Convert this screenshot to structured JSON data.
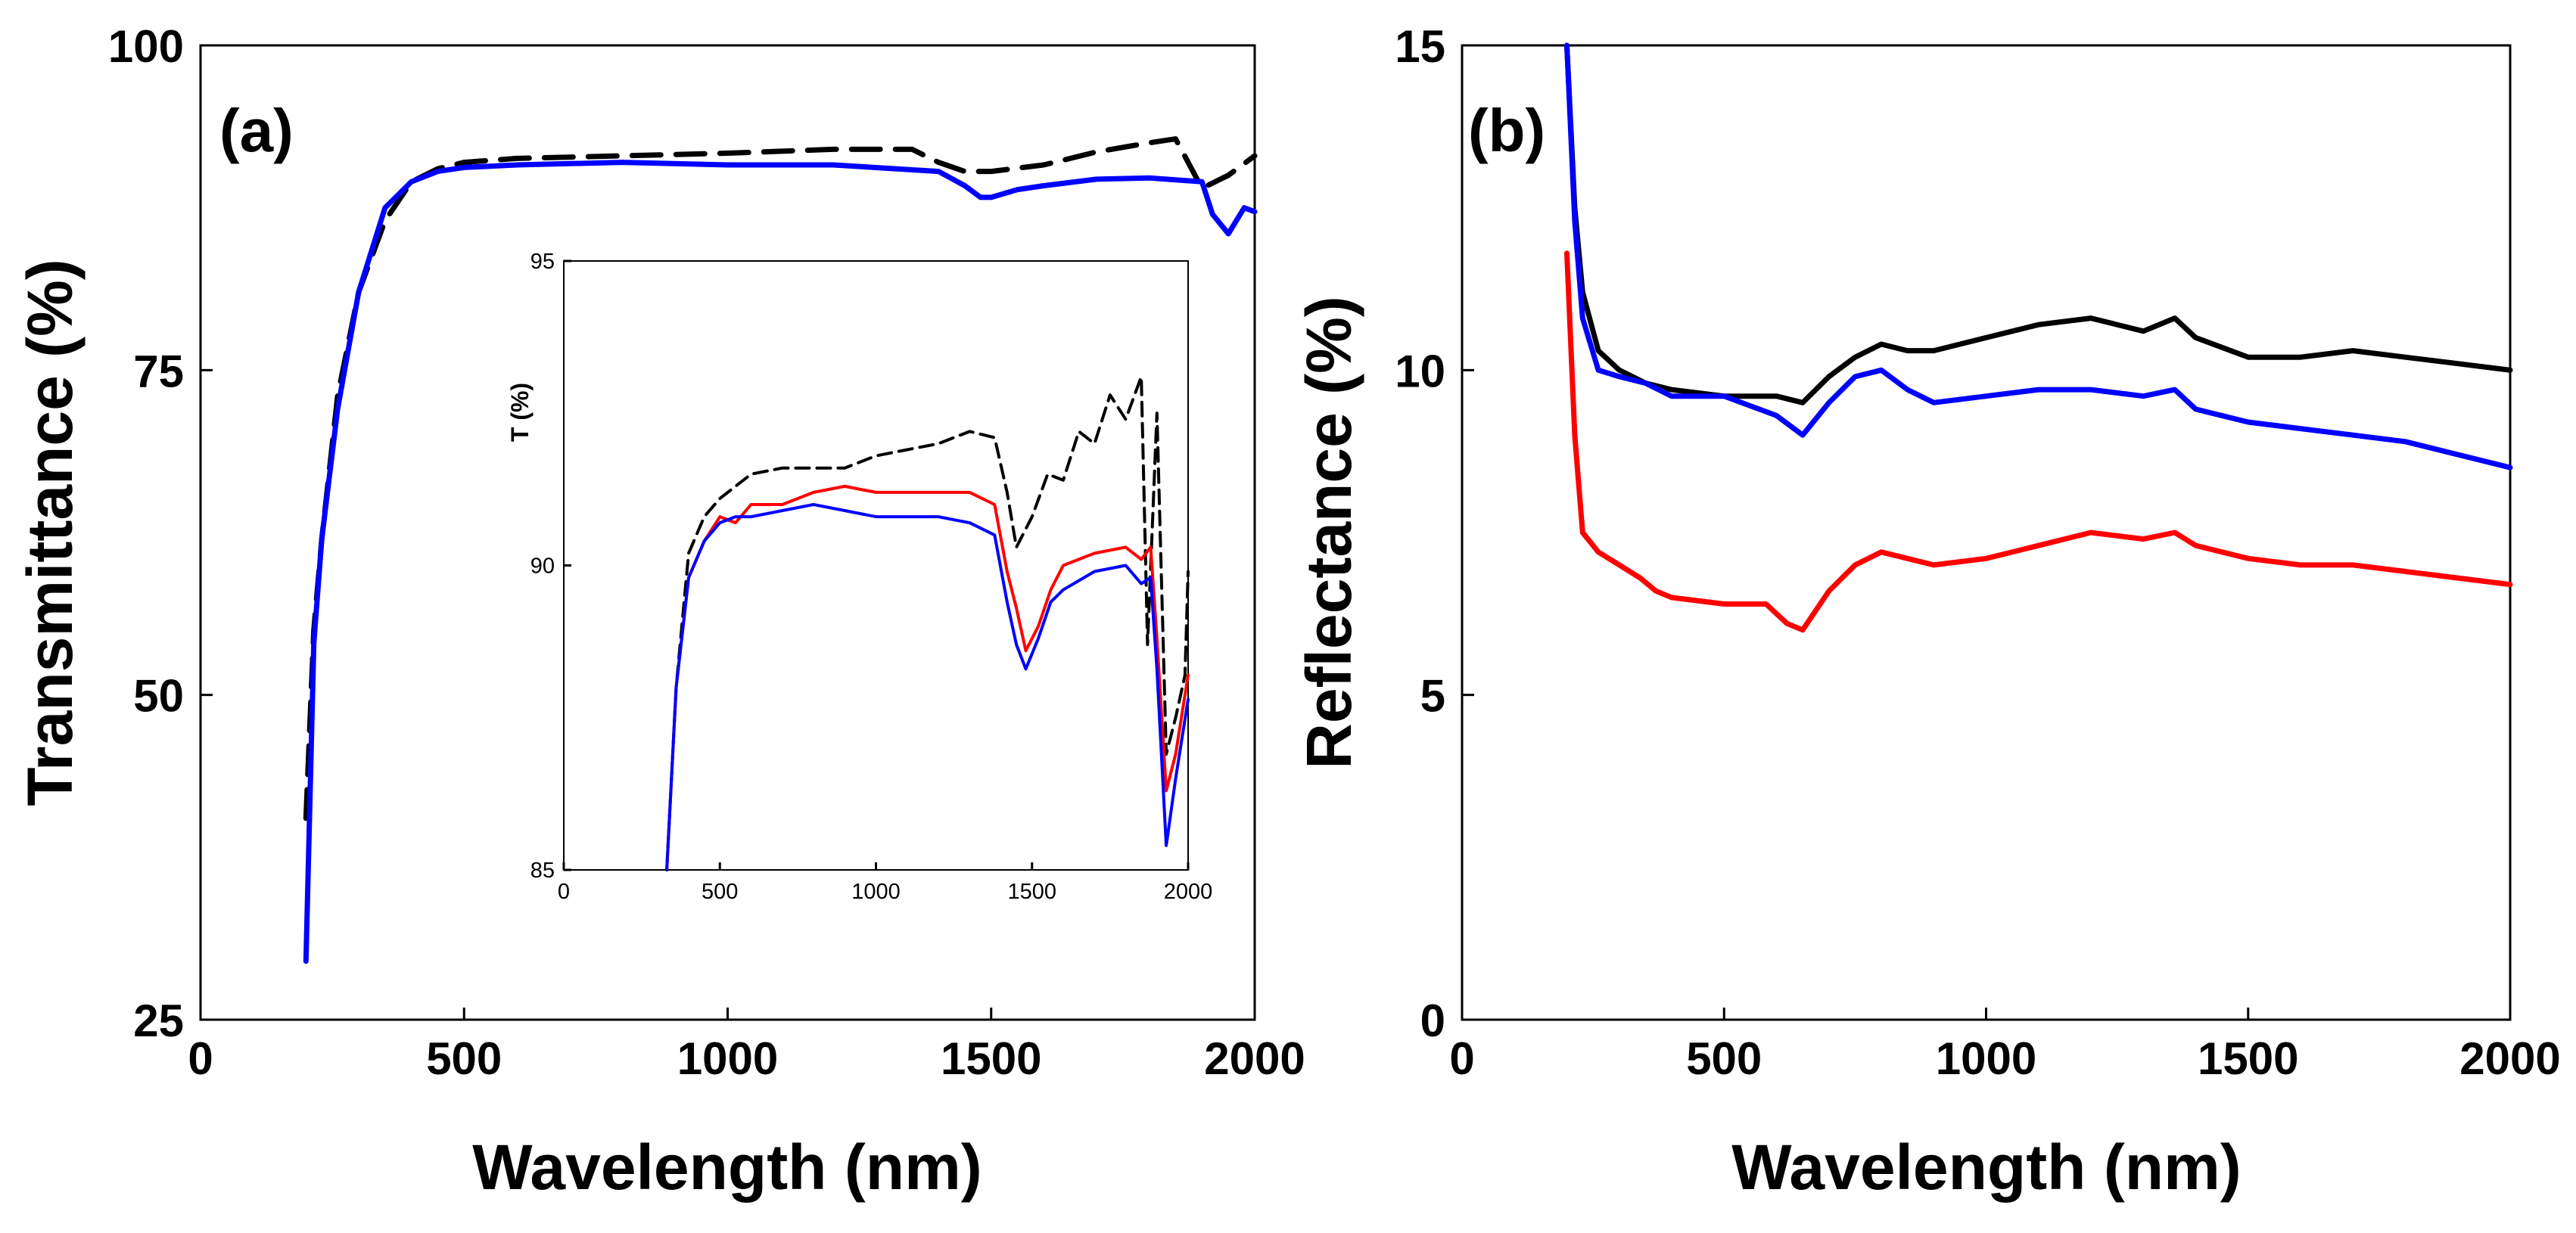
{
  "chart_data": [
    {
      "id": "a",
      "type": "line",
      "panel_label": "(a)",
      "xlabel": "Wavelength (nm)",
      "ylabel": "Transmittance (%)",
      "xlim": [
        0,
        2000
      ],
      "ylim": [
        25,
        100
      ],
      "xticks": [
        "0",
        "500",
        "1000",
        "1500",
        "2000"
      ],
      "yticks": [
        "25",
        "50",
        "75",
        "100"
      ],
      "series": [
        {
          "name": "black-dashed",
          "color": "#000000",
          "dashed": true,
          "x": [
            200,
            215,
            230,
            260,
            300,
            350,
            400,
            450,
            500,
            600,
            800,
            1000,
            1200,
            1350,
            1400,
            1450,
            1500,
            1600,
            1700,
            1800,
            1850,
            1900,
            1950,
            2000
          ],
          "y": [
            40.5,
            55,
            62,
            73,
            81,
            86.5,
            89.5,
            90.5,
            91,
            91.3,
            91.5,
            91.7,
            92,
            92,
            91,
            90.3,
            90.3,
            90.8,
            91.8,
            92.5,
            92.8,
            89,
            90,
            91.5
          ]
        },
        {
          "name": "blue",
          "color": "#0000ff",
          "dashed": false,
          "x": [
            200,
            215,
            230,
            260,
            300,
            350,
            400,
            450,
            500,
            600,
            800,
            1000,
            1200,
            1400,
            1450,
            1480,
            1500,
            1550,
            1600,
            1700,
            1800,
            1900,
            1920,
            1950,
            1980,
            2000
          ],
          "y": [
            29.5,
            54,
            62,
            72,
            81,
            87.5,
            89.5,
            90.3,
            90.6,
            90.8,
            91,
            90.8,
            90.8,
            90.3,
            89.2,
            88.3,
            88.3,
            88.9,
            89.2,
            89.7,
            89.8,
            89.5,
            87,
            85.5,
            87.5,
            87.2
          ]
        }
      ]
    },
    {
      "id": "a-inset",
      "type": "line",
      "ylabel": "T (%)",
      "xlim": [
        0,
        2000
      ],
      "ylim": [
        85,
        95
      ],
      "xticks": [
        "0",
        "500",
        "1000",
        "1500",
        "2000"
      ],
      "yticks": [
        "85",
        "90",
        "95"
      ],
      "series": [
        {
          "name": "black-dashed",
          "color": "#000000",
          "dashed": true,
          "x": [
            330,
            360,
            400,
            450,
            500,
            550,
            600,
            700,
            800,
            900,
            1000,
            1100,
            1200,
            1300,
            1380,
            1420,
            1450,
            1500,
            1550,
            1600,
            1650,
            1700,
            1750,
            1800,
            1850,
            1870,
            1900,
            1930,
            1960,
            1990,
            2000
          ],
          "y": [
            85,
            88,
            90.2,
            90.8,
            91.1,
            91.3,
            91.5,
            91.6,
            91.6,
            91.6,
            91.8,
            91.9,
            92.0,
            92.2,
            92.1,
            91.2,
            90.3,
            90.8,
            91.5,
            91.4,
            92.2,
            92.0,
            92.8,
            92.4,
            93.1,
            88.7,
            92.5,
            86.9,
            87.5,
            88.2,
            89.9
          ]
        },
        {
          "name": "red",
          "color": "#ff0000",
          "dashed": false,
          "x": [
            330,
            360,
            400,
            450,
            500,
            550,
            600,
            700,
            800,
            900,
            1000,
            1100,
            1200,
            1300,
            1380,
            1420,
            1450,
            1480,
            1520,
            1560,
            1600,
            1700,
            1800,
            1850,
            1880,
            1900,
            1930,
            1960,
            2000
          ],
          "y": [
            85,
            88,
            89.8,
            90.4,
            90.8,
            90.7,
            91.0,
            91.0,
            91.2,
            91.3,
            91.2,
            91.2,
            91.2,
            91.2,
            91.0,
            89.9,
            89.3,
            88.6,
            89.0,
            89.6,
            90.0,
            90.2,
            90.3,
            90.1,
            90.3,
            88.8,
            86.3,
            86.9,
            88.2
          ]
        },
        {
          "name": "blue",
          "color": "#0000ff",
          "dashed": false,
          "x": [
            330,
            360,
            400,
            450,
            500,
            550,
            600,
            700,
            800,
            900,
            1000,
            1100,
            1200,
            1300,
            1380,
            1420,
            1450,
            1480,
            1520,
            1560,
            1600,
            1700,
            1800,
            1850,
            1880,
            1900,
            1930,
            1960,
            2000
          ],
          "y": [
            85,
            88,
            89.8,
            90.4,
            90.7,
            90.8,
            90.8,
            90.9,
            91.0,
            90.9,
            90.8,
            90.8,
            90.8,
            90.7,
            90.5,
            89.4,
            88.7,
            88.3,
            88.8,
            89.4,
            89.6,
            89.9,
            90.0,
            89.7,
            89.8,
            88.3,
            85.4,
            86.5,
            87.8
          ]
        }
      ]
    },
    {
      "id": "b",
      "type": "line",
      "panel_label": "(b)",
      "xlabel": "Wavelength (nm)",
      "ylabel": "Reflectance (%)",
      "xlim": [
        0,
        2000
      ],
      "ylim": [
        0,
        15
      ],
      "xticks": [
        "0",
        "500",
        "1000",
        "1500",
        "2000"
      ],
      "yticks": [
        "0",
        "5",
        "10",
        "15"
      ],
      "series": [
        {
          "name": "black",
          "color": "#000000",
          "dashed": false,
          "x": [
            200,
            215,
            230,
            260,
            300,
            350,
            400,
            500,
            600,
            650,
            700,
            750,
            800,
            850,
            900,
            1000,
            1100,
            1200,
            1300,
            1360,
            1400,
            1500,
            1600,
            1700,
            1800,
            1900,
            2000
          ],
          "y": [
            15,
            12.5,
            11.2,
            10.3,
            10.0,
            9.8,
            9.7,
            9.6,
            9.6,
            9.5,
            9.9,
            10.2,
            10.4,
            10.3,
            10.3,
            10.5,
            10.7,
            10.8,
            10.6,
            10.8,
            10.5,
            10.2,
            10.2,
            10.3,
            10.2,
            10.1,
            10.0
          ]
        },
        {
          "name": "blue",
          "color": "#0000ff",
          "dashed": false,
          "x": [
            200,
            215,
            230,
            260,
            300,
            350,
            400,
            500,
            600,
            650,
            700,
            750,
            800,
            850,
            900,
            1000,
            1100,
            1200,
            1300,
            1360,
            1400,
            1500,
            1600,
            1700,
            1800,
            1900,
            2000
          ],
          "y": [
            15,
            12.3,
            10.8,
            10.0,
            9.9,
            9.8,
            9.6,
            9.6,
            9.3,
            9.0,
            9.5,
            9.9,
            10.0,
            9.7,
            9.5,
            9.6,
            9.7,
            9.7,
            9.6,
            9.7,
            9.4,
            9.2,
            9.1,
            9.0,
            8.9,
            8.7,
            8.5
          ]
        },
        {
          "name": "red",
          "color": "#ff0000",
          "dashed": false,
          "x": [
            200,
            215,
            230,
            260,
            300,
            340,
            370,
            400,
            500,
            580,
            620,
            650,
            700,
            750,
            800,
            850,
            900,
            1000,
            1100,
            1200,
            1300,
            1360,
            1400,
            1500,
            1600,
            1700,
            1800,
            1900,
            2000
          ],
          "y": [
            11.8,
            9.0,
            7.5,
            7.2,
            7.0,
            6.8,
            6.6,
            6.5,
            6.4,
            6.4,
            6.1,
            6.0,
            6.6,
            7.0,
            7.2,
            7.1,
            7.0,
            7.1,
            7.3,
            7.5,
            7.4,
            7.5,
            7.3,
            7.1,
            7.0,
            7.0,
            6.9,
            6.8,
            6.7
          ]
        }
      ]
    }
  ]
}
